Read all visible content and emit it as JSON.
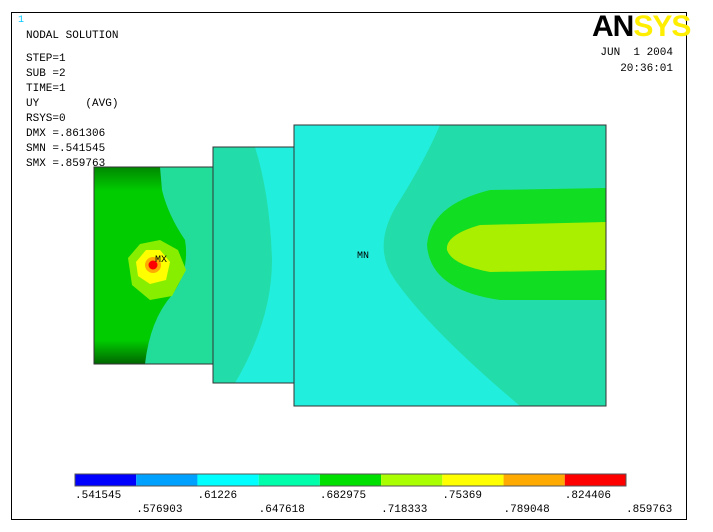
{
  "window_number": "1",
  "header": {
    "lines": [
      "NODAL SOLUTION",
      "STEP=1",
      "SUB =2",
      "TIME=1",
      "UY       (AVG)",
      "RSYS=0",
      "DMX =.861306",
      "SMN =.541545",
      "SMX =.859763"
    ]
  },
  "logo": [
    "AN",
    "SYS"
  ],
  "date": "JUN  1 2004",
  "time": "20:36:01",
  "markers": {
    "max": "MX",
    "min": "MN"
  },
  "legend": {
    "labels": [
      ".541545",
      ".576903",
      ".61226",
      ".647618",
      ".682975",
      ".718333",
      ".75369",
      ".789048",
      ".824406",
      ".859763"
    ],
    "colors": [
      "#0000ff",
      "#00a0ff",
      "#00ffff",
      "#00ffaa",
      "#00e000",
      "#aaff00",
      "#ffff00",
      "#ffaa00",
      "#ff0000"
    ]
  }
}
